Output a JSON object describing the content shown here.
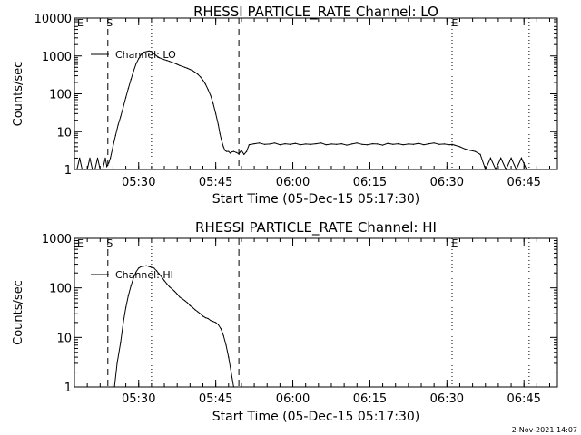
{
  "footer": {
    "timestamp": "2-Nov-2021 14:07"
  },
  "chart_data": [
    {
      "type": "line",
      "title": "RHESSI PARTICLE_RATE Channel: LO",
      "xlabel": "Start Time (05-Dec-15 05:17:30)",
      "ylabel": "Counts/sec",
      "y_scale": "log",
      "ylim": [
        1,
        10000
      ],
      "x_unit": "minutes since 05:17:30",
      "xlim": [
        0,
        94
      ],
      "x_tick_labels": [
        "05:30",
        "05:45",
        "06:00",
        "06:15",
        "06:30",
        "06:45"
      ],
      "x_tick_positions": [
        12.5,
        27.5,
        42.5,
        57.5,
        72.5,
        87.5
      ],
      "y_tick_labels": [
        "1",
        "10",
        "100",
        "1000",
        "10000"
      ],
      "y_tick_values": [
        1,
        10,
        100,
        1000,
        10000
      ],
      "legend": {
        "entries": [
          "Channel: LO"
        ],
        "placement": "top-left"
      },
      "markers": {
        "start_label": "S",
        "end_label": "E",
        "dashed_lines": [
          6.5,
          32.0
        ],
        "dotted_lines": [
          15.0,
          73.5,
          88.5
        ],
        "s_label_x": 6.5,
        "e_label_x": 73.5
      },
      "series": [
        {
          "name": "Channel: LO",
          "x": [
            0.5,
            1.0,
            1.5,
            2.0,
            2.5,
            3.0,
            3.5,
            4.0,
            4.5,
            5.0,
            5.5,
            6.0,
            6.3,
            6.7,
            7.0,
            7.5,
            8.0,
            8.5,
            9.0,
            9.5,
            10.0,
            10.5,
            11.0,
            11.5,
            12.0,
            12.5,
            13.0,
            13.5,
            14.0,
            14.5,
            15.0,
            15.5,
            16.0,
            16.5,
            17.0,
            17.5,
            18.0,
            18.5,
            19.0,
            19.5,
            20.0,
            20.5,
            21.0,
            21.5,
            22.0,
            22.5,
            23.0,
            23.5,
            24.0,
            24.5,
            25.0,
            25.5,
            26.0,
            26.5,
            27.0,
            27.5,
            28.0,
            28.3,
            28.6,
            29.0,
            29.3,
            29.6,
            30.0,
            30.3,
            30.6,
            31.0,
            31.5,
            32.0,
            32.5,
            33.0,
            33.5,
            34.0,
            35.0,
            36.0,
            37.0,
            38.0,
            39.0,
            40.0,
            41.0,
            42.0,
            43.0,
            44.0,
            45.0,
            46.0,
            47.0,
            48.0,
            49.0,
            50.0,
            51.0,
            52.0,
            53.0,
            54.0,
            55.0,
            56.0,
            57.0,
            58.0,
            59.0,
            60.0,
            61.0,
            62.0,
            63.0,
            64.0,
            65.0,
            66.0,
            67.0,
            68.0,
            69.0,
            70.0,
            71.0,
            72.0,
            73.0,
            73.5,
            74.0,
            75.0,
            76.0,
            77.0,
            78.0,
            79.0,
            80.0,
            81.0,
            82.0,
            83.0,
            84.0,
            85.0,
            86.0,
            87.0,
            88.0
          ],
          "values": [
            1,
            2,
            1,
            1,
            1,
            2,
            1,
            1,
            2,
            1,
            1,
            2,
            1.2,
            1.5,
            2,
            4,
            8,
            15,
            25,
            45,
            80,
            140,
            240,
            400,
            620,
            850,
            1100,
            1250,
            1300,
            1350,
            1300,
            1150,
            1000,
            900,
            850,
            800,
            760,
            720,
            680,
            640,
            600,
            560,
            530,
            500,
            470,
            440,
            410,
            370,
            330,
            280,
            230,
            180,
            130,
            90,
            55,
            30,
            15,
            9,
            6,
            4,
            3.2,
            3,
            3,
            2.7,
            2.9,
            3,
            2.8,
            2.6,
            3.2,
            2.5,
            3,
            4.5,
            4.8,
            5,
            4.6,
            4.7,
            5,
            4.5,
            4.8,
            4.6,
            4.9,
            4.5,
            4.7,
            4.6,
            4.8,
            5,
            4.5,
            4.7,
            4.6,
            4.8,
            4.4,
            4.7,
            5,
            4.6,
            4.5,
            4.8,
            4.7,
            4.4,
            4.9,
            4.6,
            4.8,
            4.5,
            4.7,
            4.6,
            4.9,
            4.5,
            4.8,
            5,
            4.6,
            4.7,
            4.5,
            4.6,
            4.4,
            4,
            3.5,
            3.2,
            3,
            2.5,
            1,
            2,
            1,
            2,
            1,
            2,
            1,
            2,
            1
          ]
        }
      ]
    },
    {
      "type": "line",
      "title": "RHESSI PARTICLE_RATE Channel: HI",
      "xlabel": "Start Time (05-Dec-15 05:17:30)",
      "ylabel": "Counts/sec",
      "y_scale": "log",
      "ylim": [
        1,
        1000
      ],
      "x_unit": "minutes since 05:17:30",
      "xlim": [
        0,
        94
      ],
      "x_tick_labels": [
        "05:30",
        "05:45",
        "06:00",
        "06:15",
        "06:30",
        "06:45"
      ],
      "x_tick_positions": [
        12.5,
        27.5,
        42.5,
        57.5,
        72.5,
        87.5
      ],
      "y_tick_labels": [
        "1",
        "10",
        "100",
        "1000"
      ],
      "y_tick_values": [
        1,
        10,
        100,
        1000
      ],
      "legend": {
        "entries": [
          "Channel: HI"
        ],
        "placement": "top-left"
      },
      "markers": {
        "start_label": "S",
        "end_label": "E",
        "dashed_lines": [
          6.5,
          32.0
        ],
        "dotted_lines": [
          15.0,
          73.5,
          88.5
        ],
        "s_label_x": 6.5,
        "e_label_x": 73.5
      },
      "series": [
        {
          "name": "Channel: HI",
          "x": [
            7.8,
            8.3,
            9.0,
            9.5,
            10.0,
            10.5,
            11.0,
            11.5,
            12.0,
            12.5,
            13.0,
            13.5,
            14.0,
            14.5,
            15.0,
            15.5,
            16.0,
            16.5,
            17.0,
            17.5,
            18.0,
            18.5,
            19.0,
            19.5,
            20.0,
            20.5,
            21.0,
            21.5,
            22.0,
            22.5,
            23.0,
            23.5,
            24.0,
            24.5,
            25.0,
            25.5,
            26.0,
            26.5,
            27.0,
            27.5,
            28.0,
            28.5,
            29.0,
            29.5,
            30.0,
            30.5,
            31.0
          ],
          "values": [
            1,
            3,
            8,
            20,
            40,
            70,
            110,
            160,
            210,
            250,
            270,
            275,
            280,
            270,
            260,
            250,
            220,
            190,
            165,
            140,
            120,
            105,
            95,
            85,
            75,
            65,
            60,
            55,
            50,
            44,
            40,
            36,
            33,
            30,
            27,
            25,
            24,
            22,
            21,
            20,
            18,
            15,
            11,
            7,
            4,
            2,
            1
          ]
        }
      ]
    }
  ]
}
